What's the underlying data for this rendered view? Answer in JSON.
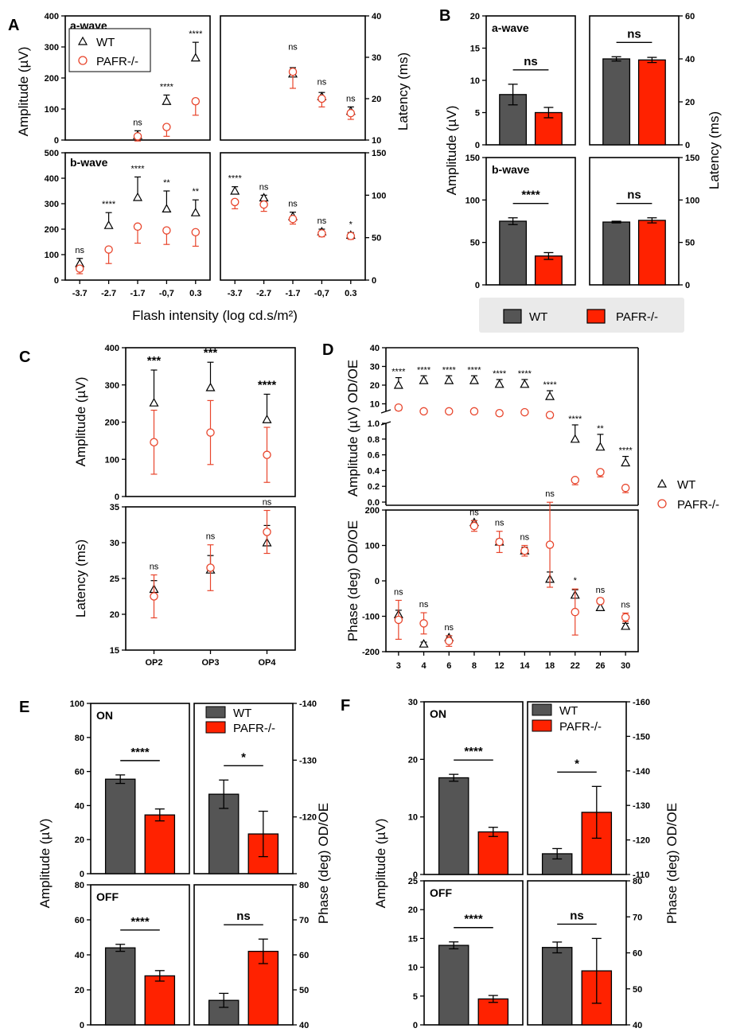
{
  "colors": {
    "wt_bar": "#555555",
    "ko_bar": "#ff2200",
    "ko_marker": "#e8452c",
    "wt_marker": "#000000"
  },
  "legend": {
    "wt": "WT",
    "ko": "PAFR-/-"
  },
  "panel_labels": [
    "A",
    "B",
    "C",
    "D",
    "E",
    "F"
  ],
  "chart_data": [
    {
      "panel": "A",
      "type": "scatter",
      "xlabel": "Flash intensity (log cd.s/m²)",
      "categories": [
        "-3.7",
        "-2.7",
        "-1.7",
        "-0,7",
        "0.3"
      ],
      "ylabel_left": "Amplitude (µV)",
      "ylabel_right": "Latency (ms)",
      "subplots": [
        {
          "id": "A_aamp",
          "title": "a-wave",
          "ylim": [
            0,
            400
          ],
          "ticks": [
            "0",
            "100",
            "200",
            "300",
            "400"
          ],
          "series": [
            {
              "name": "WT",
              "values": [
                null,
                null,
                15,
                125,
                265
              ],
              "err": [
                null,
                null,
                15,
                20,
                50
              ]
            },
            {
              "name": "PAFR-/-",
              "values": [
                null,
                null,
                12,
                42,
                125
              ],
              "err": [
                null,
                null,
                15,
                30,
                45
              ]
            }
          ],
          "sig": [
            null,
            null,
            "ns",
            "****",
            "****"
          ]
        },
        {
          "id": "A_alat",
          "ylim": [
            10,
            40
          ],
          "ticks": [
            "10",
            "20",
            "30",
            "40"
          ],
          "series": [
            {
              "name": "WT",
              "values": [
                null,
                null,
                26,
                20.5,
                17
              ],
              "err": [
                null,
                null,
                1.5,
                1,
                1
              ]
            },
            {
              "name": "PAFR-/-",
              "values": [
                null,
                null,
                26.5,
                20,
                16.5
              ],
              "err": [
                null,
                null,
                4,
                2,
                1.5
              ]
            }
          ],
          "sig": [
            null,
            null,
            "ns",
            "ns",
            "ns"
          ]
        },
        {
          "id": "A_bamp",
          "title": "b-wave",
          "ylim": [
            0,
            500
          ],
          "ticks": [
            "0",
            "100",
            "200",
            "300",
            "400",
            "500"
          ],
          "series": [
            {
              "name": "WT",
              "values": [
                65,
                215,
                325,
                280,
                265
              ],
              "err": [
                20,
                50,
                80,
                70,
                50
              ]
            },
            {
              "name": "PAFR-/-",
              "values": [
                45,
                120,
                210,
                195,
                188
              ],
              "err": [
                20,
                55,
                65,
                55,
                55
              ]
            }
          ],
          "sig": [
            "ns",
            "****",
            "****",
            "**",
            "**"
          ]
        },
        {
          "id": "A_blat",
          "ylim": [
            0,
            150
          ],
          "ticks": [
            "0",
            "50",
            "100",
            "150"
          ],
          "series": [
            {
              "name": "WT",
              "values": [
                105,
                97,
                75,
                57,
                53
              ],
              "err": [
                5,
                3,
                5,
                3,
                3
              ]
            },
            {
              "name": "PAFR-/-",
              "values": [
                92,
                89,
                72,
                55,
                52
              ],
              "err": [
                8,
                8,
                6,
                4,
                4
              ]
            }
          ],
          "sig": [
            "****",
            "ns",
            "ns",
            "ns",
            "*"
          ]
        }
      ]
    },
    {
      "panel": "B",
      "type": "bar",
      "ylabel_left": "Amplitude (µV)",
      "ylabel_right": "Latency (ms)",
      "subplots": [
        {
          "id": "B_aamp",
          "title": "a-wave",
          "ylim": [
            0,
            20
          ],
          "ticks": [
            "0",
            "5",
            "10",
            "15",
            "20"
          ],
          "values": [
            7.8,
            5.0
          ],
          "err": [
            1.6,
            0.8
          ],
          "sig": "ns"
        },
        {
          "id": "B_alat",
          "ylim": [
            0,
            60
          ],
          "ticks": [
            "0",
            "20",
            "40",
            "60"
          ],
          "values": [
            40,
            39.5
          ],
          "err": [
            1.0,
            1.2
          ],
          "sig": "ns"
        },
        {
          "id": "B_bamp",
          "title": "b-wave",
          "ylim": [
            0,
            150
          ],
          "ticks": [
            "0",
            "50",
            "100",
            "150"
          ],
          "values": [
            75,
            34
          ],
          "err": [
            4,
            4
          ],
          "sig": "****"
        },
        {
          "id": "B_blat",
          "ylim": [
            0,
            150
          ],
          "ticks": [
            "0",
            "50",
            "100",
            "150"
          ],
          "values": [
            74,
            76
          ],
          "err": [
            1,
            3
          ],
          "sig": "ns"
        }
      ]
    },
    {
      "panel": "C",
      "type": "scatter",
      "categories": [
        "OP2",
        "OP3",
        "OP4"
      ],
      "subplots": [
        {
          "id": "C_amp",
          "ylabel": "Amplitude (µV)",
          "ylim": [
            0,
            400
          ],
          "ticks": [
            "0",
            "100",
            "200",
            "300",
            "400"
          ],
          "series": [
            {
              "name": "WT",
              "values": [
                252,
                293,
                207
              ],
              "err": [
                88,
                68,
                68
              ]
            },
            {
              "name": "PAFR-/-",
              "values": [
                146,
                172,
                112
              ],
              "err": [
                86,
                86,
                74
              ]
            }
          ],
          "sig": [
            "***",
            "***",
            "****"
          ]
        },
        {
          "id": "C_lat",
          "ylabel": "Latency (ms)",
          "ylim": [
            15,
            35
          ],
          "ticks": [
            "15",
            "20",
            "25",
            "30",
            "35"
          ],
          "series": [
            {
              "name": "WT",
              "values": [
                23.5,
                26.2,
                30
              ],
              "err": [
                1.2,
                2,
                2.4
              ]
            },
            {
              "name": "PAFR-/-",
              "values": [
                22.5,
                26.5,
                31.5
              ],
              "err": [
                3,
                3.2,
                3
              ]
            }
          ],
          "sig": [
            "ns",
            "ns",
            "ns"
          ]
        }
      ]
    },
    {
      "panel": "D",
      "type": "scatter",
      "categories": [
        "3",
        "4",
        "6",
        "8",
        "12",
        "14",
        "18",
        "22",
        "26",
        "30"
      ],
      "subplots": [
        {
          "id": "D_amp",
          "ylabel": "Amplitude (µV) OD/OE",
          "ylim_upper": [
            0,
            40
          ],
          "ticks_upper": [
            "10",
            "20",
            "30",
            "40"
          ],
          "ylim_lower": [
            0,
            1.0
          ],
          "ticks_lower": [
            "0.0",
            "0.2",
            "0.4",
            "0.6",
            "0.8",
            "1.0"
          ],
          "series": [
            {
              "name": "WT",
              "values": [
                20,
                22.5,
                22.5,
                22.5,
                20.5,
                20.5,
                14,
                0.8,
                0.7,
                0.5
              ],
              "err": [
                4,
                2.5,
                2.5,
                2.5,
                2.5,
                2.5,
                3,
                0.18,
                0.16,
                0.08
              ]
            },
            {
              "name": "PAFR-/-",
              "values": [
                8,
                6,
                6,
                6,
                5,
                5.5,
                4,
                0.28,
                0.38,
                0.18
              ],
              "err": [
                1.5,
                1,
                1,
                1,
                1,
                1,
                1.5,
                0.06,
                0.06,
                0.06
              ]
            }
          ],
          "sig": [
            "****",
            "****",
            "****",
            "****",
            "****",
            "****",
            "****",
            "****",
            "**",
            "****"
          ]
        },
        {
          "id": "D_ph",
          "ylabel": "Phase (deg) OD/OE",
          "ylim": [
            -200,
            200
          ],
          "ticks": [
            "-200",
            "-100",
            "0",
            "100",
            "200"
          ],
          "series": [
            {
              "name": "WT",
              "values": [
                -95,
                -178,
                -160,
                165,
                110,
                85,
                5,
                -40,
                -75,
                -128
              ],
              "err": [
                12,
                5,
                5,
                5,
                8,
                10,
                20,
                15,
                12,
                8
              ]
            },
            {
              "name": "PAFR-/-",
              "values": [
                -110,
                -120,
                -170,
                155,
                110,
                85,
                102,
                -88,
                -57,
                -103
              ],
              "err": [
                55,
                30,
                15,
                15,
                30,
                15,
                120,
                65,
                8,
                12
              ]
            }
          ],
          "sig": [
            "ns",
            "ns",
            "ns",
            "ns",
            "ns",
            "ns",
            "ns",
            "*",
            "ns",
            "ns"
          ]
        }
      ]
    },
    {
      "panel": "E",
      "type": "bar",
      "ylabel_left": "Amplitude (µV)",
      "ylabel_right": "Phase (deg) OD/OE",
      "subplots": [
        {
          "id": "E_on_amp",
          "title": "ON",
          "ylim": [
            0,
            100
          ],
          "ticks": [
            "0",
            "20",
            "40",
            "60",
            "80",
            "100"
          ],
          "values": [
            55.5,
            34.5
          ],
          "err": [
            2.5,
            3.5
          ],
          "sig": "****"
        },
        {
          "id": "E_on_ph",
          "ylim": [
            -110,
            -140
          ],
          "ticks": [
            "-110",
            "-120",
            "-130",
            "-140"
          ],
          "values": [
            -124,
            -117
          ],
          "err": [
            2.5,
            4
          ],
          "sig": "*"
        },
        {
          "id": "E_off_amp",
          "title": "OFF",
          "ylim": [
            0,
            80
          ],
          "ticks": [
            "0",
            "20",
            "40",
            "60",
            "80"
          ],
          "values": [
            44,
            28
          ],
          "err": [
            2,
            3
          ],
          "sig": "****"
        },
        {
          "id": "E_off_ph",
          "ylim": [
            40,
            80
          ],
          "ticks": [
            "40",
            "50",
            "60",
            "70",
            "80"
          ],
          "values": [
            47,
            61
          ],
          "err": [
            2,
            3.5
          ],
          "sig": "ns"
        }
      ]
    },
    {
      "panel": "F",
      "type": "bar",
      "ylabel_left": "Amplitude (µV)",
      "ylabel_right": "Phase (deg) OD/OE",
      "subplots": [
        {
          "id": "F_on_amp",
          "title": "ON",
          "ylim": [
            0,
            30
          ],
          "ticks": [
            "0",
            "10",
            "20",
            "30"
          ],
          "values": [
            16.8,
            7.4
          ],
          "err": [
            0.6,
            0.8
          ],
          "sig": "****"
        },
        {
          "id": "F_on_ph",
          "ylim": [
            -110,
            -160
          ],
          "ticks": [
            "-110",
            "-120",
            "-130",
            "-140",
            "-150",
            "-160"
          ],
          "values": [
            -116,
            -128
          ],
          "err": [
            1.5,
            7.5
          ],
          "sig": "*"
        },
        {
          "id": "F_off_amp",
          "title": "OFF",
          "ylim": [
            0,
            25
          ],
          "ticks": [
            "0",
            "5",
            "10",
            "15",
            "20",
            "25"
          ],
          "values": [
            13.8,
            4.5
          ],
          "err": [
            0.6,
            0.6
          ],
          "sig": "****"
        },
        {
          "id": "F_off_ph",
          "ylim": [
            40,
            80
          ],
          "ticks": [
            "40",
            "50",
            "60",
            "70",
            "80"
          ],
          "values": [
            61.5,
            55
          ],
          "err": [
            1.5,
            9
          ],
          "sig": "ns"
        }
      ]
    }
  ]
}
